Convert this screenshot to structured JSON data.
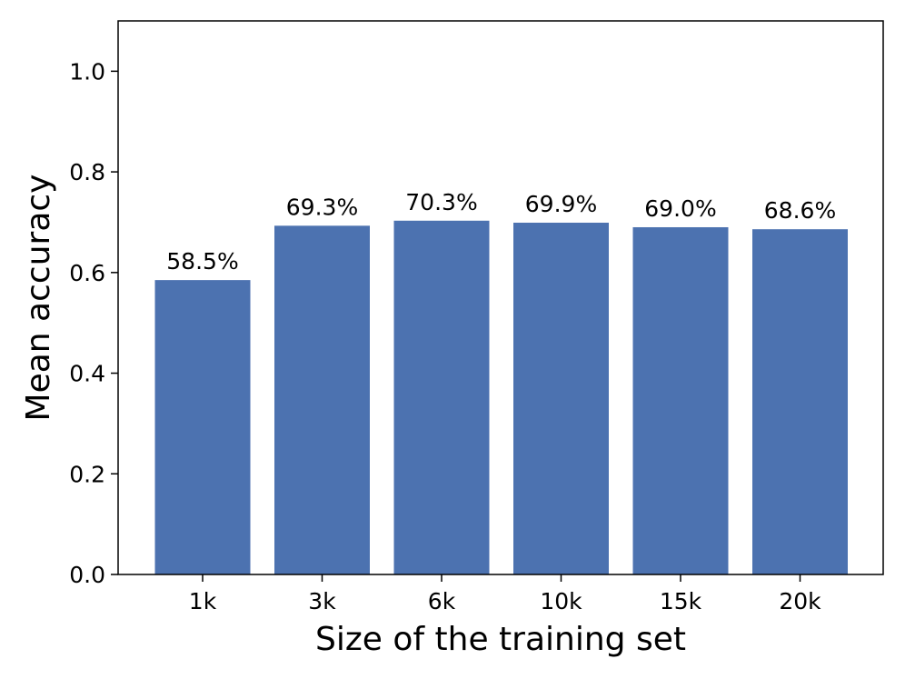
{
  "chart_data": {
    "type": "bar",
    "categories": [
      "1k",
      "3k",
      "6k",
      "10k",
      "15k",
      "20k"
    ],
    "values": [
      0.585,
      0.693,
      0.703,
      0.699,
      0.69,
      0.686
    ],
    "data_labels": [
      "58.5%",
      "69.3%",
      "70.3%",
      "69.9%",
      "69.0%",
      "68.6%"
    ],
    "title": "",
    "xlabel": "Size of the training set",
    "ylabel": "Mean accuracy",
    "ylim": [
      0,
      1.1
    ],
    "yticks": [
      0.0,
      0.2,
      0.4,
      0.6,
      0.8,
      1.0
    ],
    "ytick_labels": [
      "0.0",
      "0.2",
      "0.4",
      "0.6",
      "0.8",
      "1.0"
    ],
    "grid": false,
    "bar_color": "#4c72b0"
  }
}
